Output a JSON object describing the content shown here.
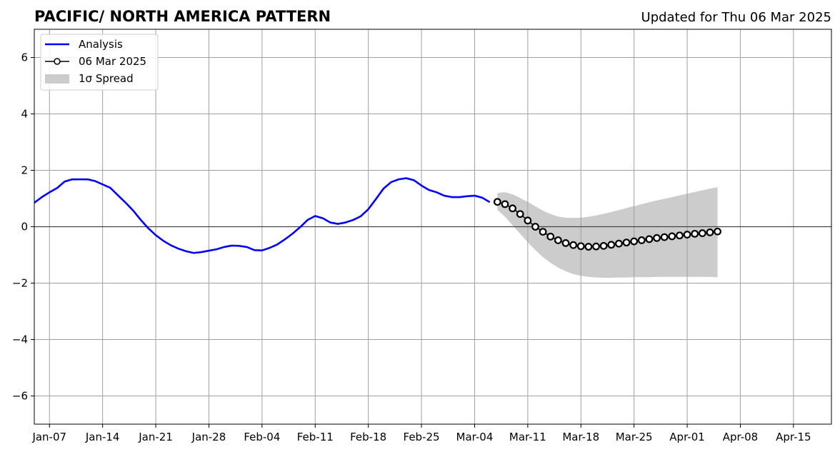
{
  "chart_data": {
    "type": "line",
    "title": "PACIFIC/ NORTH AMERICA PATTERN",
    "subtitle": "Updated for Thu 06 Mar 2025",
    "xlabel": "",
    "ylabel": "",
    "x_range": [
      "2025-01-05",
      "2025-04-20"
    ],
    "ylim": [
      -7,
      7
    ],
    "y_ticks": [
      -6,
      -4,
      -2,
      0,
      2,
      4,
      6
    ],
    "y_tick_labels": [
      "−6",
      "−4",
      "−2",
      "0",
      "2",
      "4",
      "6"
    ],
    "x_ticks": [
      "2025-01-07",
      "2025-01-14",
      "2025-01-21",
      "2025-01-28",
      "2025-02-04",
      "2025-02-11",
      "2025-02-18",
      "2025-02-25",
      "2025-03-04",
      "2025-03-11",
      "2025-03-18",
      "2025-03-25",
      "2025-04-01",
      "2025-04-08",
      "2025-04-15"
    ],
    "x_tick_labels": [
      "Jan-07",
      "Jan-14",
      "Jan-21",
      "Jan-28",
      "Feb-04",
      "Feb-11",
      "Feb-18",
      "Feb-25",
      "Mar-04",
      "Mar-11",
      "Mar-18",
      "Mar-25",
      "Apr-01",
      "Apr-08",
      "Apr-15"
    ],
    "grid": true,
    "legend_position": "top-left",
    "legend": [
      {
        "label": "Analysis",
        "kind": "line",
        "color": "#0000ff"
      },
      {
        "label": "06 Mar 2025",
        "kind": "marker-line",
        "color": "#000000"
      },
      {
        "label": "1σ Spread",
        "kind": "patch",
        "color": "#cccccc"
      }
    ],
    "series": [
      {
        "name": "Analysis",
        "color": "#0000ff",
        "points": [
          [
            "2025-01-05",
            0.85
          ],
          [
            "2025-01-06",
            1.05
          ],
          [
            "2025-01-07",
            1.22
          ],
          [
            "2025-01-08",
            1.37
          ],
          [
            "2025-01-09",
            1.6
          ],
          [
            "2025-01-10",
            1.68
          ],
          [
            "2025-01-11",
            1.68
          ],
          [
            "2025-01-12",
            1.68
          ],
          [
            "2025-01-13",
            1.62
          ],
          [
            "2025-01-14",
            1.5
          ],
          [
            "2025-01-15",
            1.38
          ],
          [
            "2025-01-16",
            1.12
          ],
          [
            "2025-01-17",
            0.86
          ],
          [
            "2025-01-18",
            0.58
          ],
          [
            "2025-01-19",
            0.25
          ],
          [
            "2025-01-20",
            -0.05
          ],
          [
            "2025-01-21",
            -0.3
          ],
          [
            "2025-01-22",
            -0.5
          ],
          [
            "2025-01-23",
            -0.66
          ],
          [
            "2025-01-24",
            -0.78
          ],
          [
            "2025-01-25",
            -0.87
          ],
          [
            "2025-01-26",
            -0.93
          ],
          [
            "2025-01-27",
            -0.9
          ],
          [
            "2025-01-28",
            -0.85
          ],
          [
            "2025-01-29",
            -0.8
          ],
          [
            "2025-01-30",
            -0.72
          ],
          [
            "2025-01-31",
            -0.67
          ],
          [
            "2025-02-01",
            -0.68
          ],
          [
            "2025-02-02",
            -0.72
          ],
          [
            "2025-02-03",
            -0.83
          ],
          [
            "2025-02-04",
            -0.84
          ],
          [
            "2025-02-05",
            -0.75
          ],
          [
            "2025-02-06",
            -0.63
          ],
          [
            "2025-02-07",
            -0.45
          ],
          [
            "2025-02-08",
            -0.25
          ],
          [
            "2025-02-09",
            -0.02
          ],
          [
            "2025-02-10",
            0.24
          ],
          [
            "2025-02-11",
            0.38
          ],
          [
            "2025-02-12",
            0.3
          ],
          [
            "2025-02-13",
            0.15
          ],
          [
            "2025-02-14",
            0.1
          ],
          [
            "2025-02-15",
            0.15
          ],
          [
            "2025-02-16",
            0.24
          ],
          [
            "2025-02-17",
            0.37
          ],
          [
            "2025-02-18",
            0.62
          ],
          [
            "2025-02-19",
            0.98
          ],
          [
            "2025-02-20",
            1.35
          ],
          [
            "2025-02-21",
            1.58
          ],
          [
            "2025-02-22",
            1.68
          ],
          [
            "2025-02-23",
            1.72
          ],
          [
            "2025-02-24",
            1.65
          ],
          [
            "2025-02-25",
            1.46
          ],
          [
            "2025-02-26",
            1.3
          ],
          [
            "2025-02-27",
            1.22
          ],
          [
            "2025-02-28",
            1.1
          ],
          [
            "2025-03-01",
            1.05
          ],
          [
            "2025-03-02",
            1.05
          ],
          [
            "2025-03-03",
            1.08
          ],
          [
            "2025-03-04",
            1.1
          ],
          [
            "2025-03-05",
            1.03
          ],
          [
            "2025-03-06",
            0.87
          ]
        ]
      },
      {
        "name": "06 Mar 2025",
        "color": "#000000",
        "points": [
          [
            "2025-03-07",
            0.88
          ],
          [
            "2025-03-08",
            0.8
          ],
          [
            "2025-03-09",
            0.65
          ],
          [
            "2025-03-10",
            0.45
          ],
          [
            "2025-03-11",
            0.22
          ],
          [
            "2025-03-12",
            0.0
          ],
          [
            "2025-03-13",
            -0.18
          ],
          [
            "2025-03-14",
            -0.35
          ],
          [
            "2025-03-15",
            -0.48
          ],
          [
            "2025-03-16",
            -0.58
          ],
          [
            "2025-03-17",
            -0.65
          ],
          [
            "2025-03-18",
            -0.69
          ],
          [
            "2025-03-19",
            -0.71
          ],
          [
            "2025-03-20",
            -0.7
          ],
          [
            "2025-03-21",
            -0.68
          ],
          [
            "2025-03-22",
            -0.64
          ],
          [
            "2025-03-23",
            -0.6
          ],
          [
            "2025-03-24",
            -0.56
          ],
          [
            "2025-03-25",
            -0.52
          ],
          [
            "2025-03-26",
            -0.48
          ],
          [
            "2025-03-27",
            -0.44
          ],
          [
            "2025-03-28",
            -0.4
          ],
          [
            "2025-03-29",
            -0.37
          ],
          [
            "2025-03-30",
            -0.34
          ],
          [
            "2025-03-31",
            -0.31
          ],
          [
            "2025-04-01",
            -0.28
          ],
          [
            "2025-04-02",
            -0.25
          ],
          [
            "2025-04-03",
            -0.23
          ],
          [
            "2025-04-04",
            -0.2
          ],
          [
            "2025-04-05",
            -0.17
          ]
        ]
      }
    ],
    "spread": {
      "name": "1σ Spread",
      "color": "#cccccc",
      "x": [
        "2025-03-07",
        "2025-03-08",
        "2025-03-09",
        "2025-03-10",
        "2025-03-11",
        "2025-03-12",
        "2025-03-13",
        "2025-03-14",
        "2025-03-15",
        "2025-03-16",
        "2025-03-17",
        "2025-03-18",
        "2025-03-19",
        "2025-03-20",
        "2025-03-21",
        "2025-03-22",
        "2025-03-23",
        "2025-03-24",
        "2025-03-25",
        "2025-03-26",
        "2025-03-27",
        "2025-03-28",
        "2025-03-29",
        "2025-03-30",
        "2025-03-31",
        "2025-04-01",
        "2025-04-02",
        "2025-04-03",
        "2025-04-04",
        "2025-04-05"
      ],
      "upper": [
        1.2,
        1.22,
        1.15,
        1.02,
        0.88,
        0.72,
        0.57,
        0.45,
        0.36,
        0.32,
        0.31,
        0.32,
        0.35,
        0.4,
        0.46,
        0.52,
        0.59,
        0.66,
        0.73,
        0.8,
        0.87,
        0.93,
        0.99,
        1.05,
        1.11,
        1.17,
        1.23,
        1.29,
        1.35,
        1.4
      ],
      "lower": [
        0.6,
        0.35,
        0.05,
        -0.25,
        -0.55,
        -0.83,
        -1.08,
        -1.28,
        -1.45,
        -1.58,
        -1.68,
        -1.74,
        -1.78,
        -1.8,
        -1.81,
        -1.81,
        -1.8,
        -1.8,
        -1.79,
        -1.79,
        -1.79,
        -1.78,
        -1.78,
        -1.78,
        -1.78,
        -1.78,
        -1.78,
        -1.78,
        -1.78,
        -1.79
      ]
    }
  }
}
